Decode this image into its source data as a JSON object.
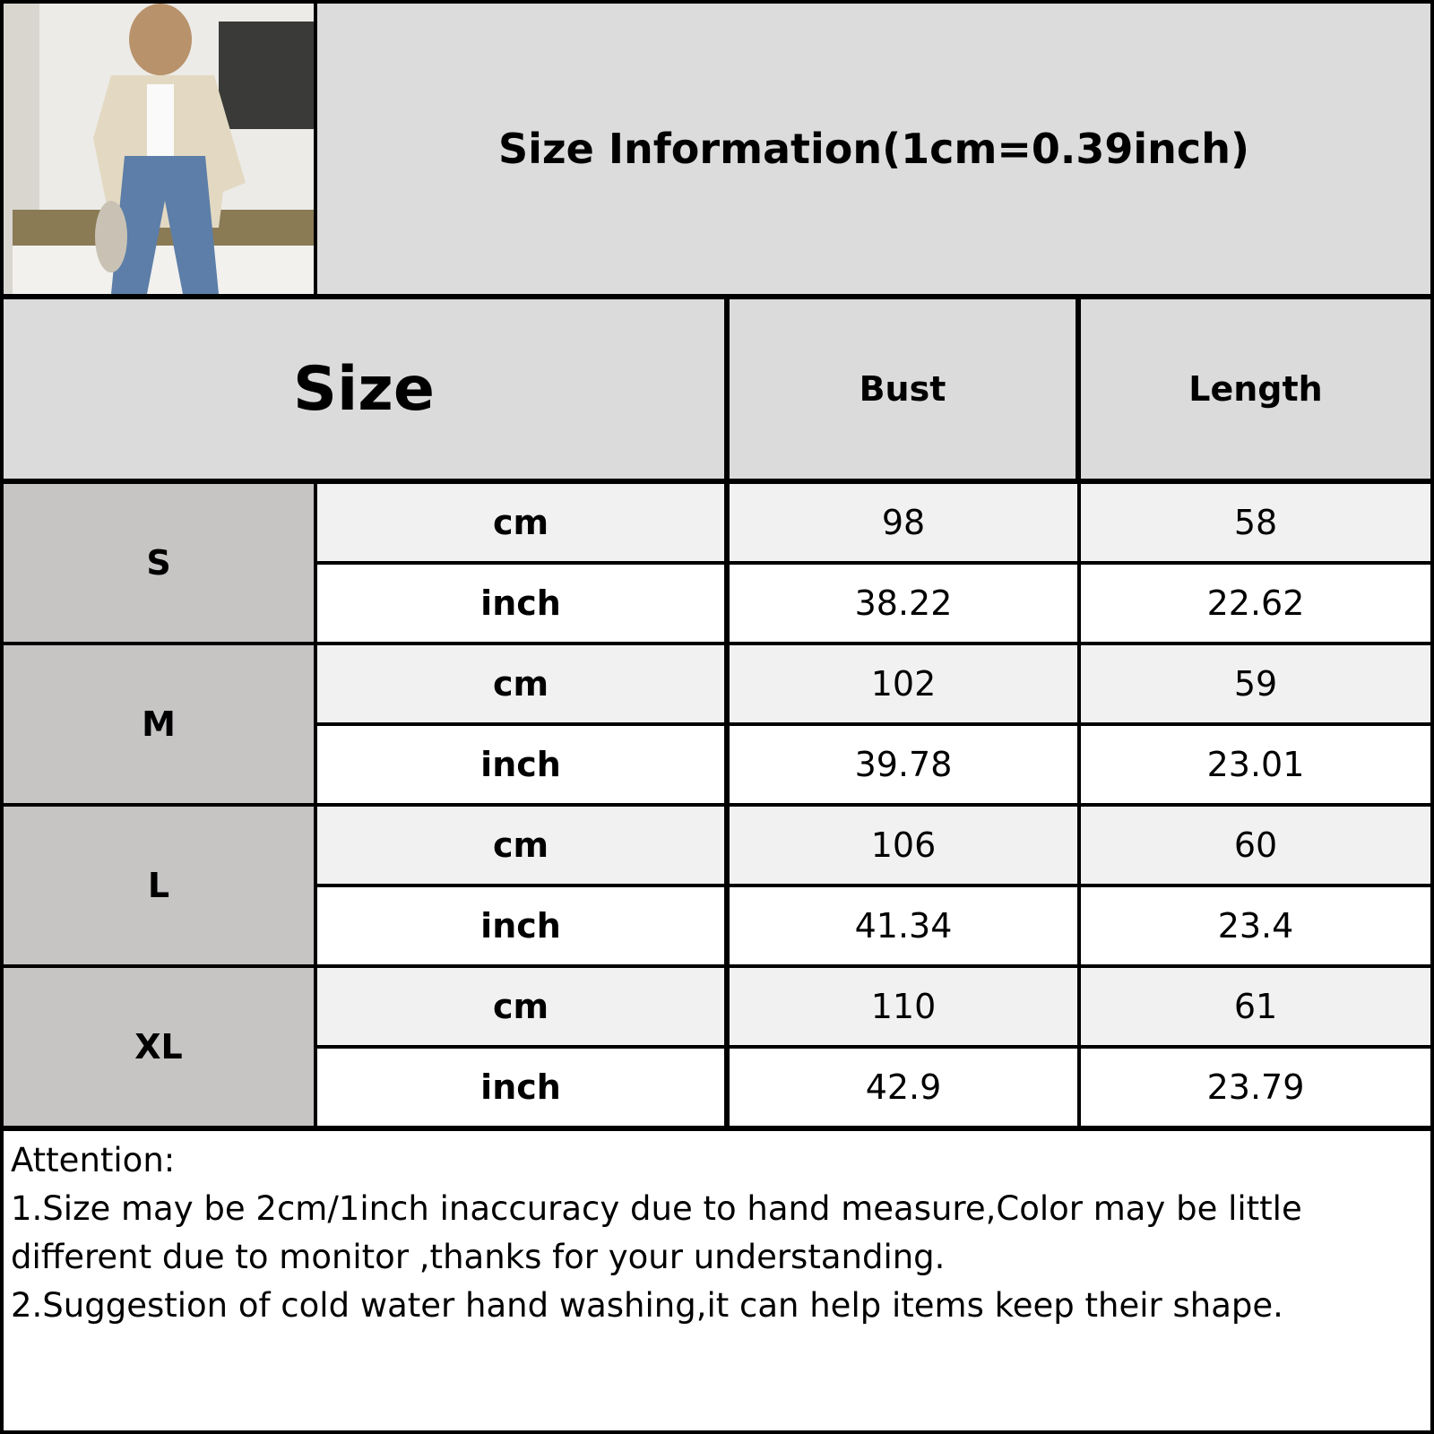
{
  "title": "Size Information(1cm=0.39inch)",
  "headers": {
    "size": "Size",
    "bust": "Bust",
    "length": "Length"
  },
  "rows": [
    {
      "size": "S",
      "cm": {
        "unit": "cm",
        "bust": "98",
        "length": "58"
      },
      "inch": {
        "unit": "inch",
        "bust": "38.22",
        "length": "22.62"
      }
    },
    {
      "size": "M",
      "cm": {
        "unit": "cm",
        "bust": "102",
        "length": "59"
      },
      "inch": {
        "unit": "inch",
        "bust": "39.78",
        "length": "23.01"
      }
    },
    {
      "size": "L",
      "cm": {
        "unit": "cm",
        "bust": "106",
        "length": "60"
      },
      "inch": {
        "unit": "inch",
        "bust": "41.34",
        "length": "23.4"
      }
    },
    {
      "size": "XL",
      "cm": {
        "unit": "cm",
        "bust": "110",
        "length": "61"
      },
      "inch": {
        "unit": "inch",
        "bust": "42.9",
        "length": "23.79"
      }
    }
  ],
  "notes": {
    "heading": "Attention:",
    "line1": "1.Size may be 2cm/1inch inaccuracy due to hand measure,Color may be little",
    "line2": "different due to monitor ,thanks for your understanding.",
    "line3": "2.Suggestion of cold water hand washing,it can help items keep their shape."
  }
}
